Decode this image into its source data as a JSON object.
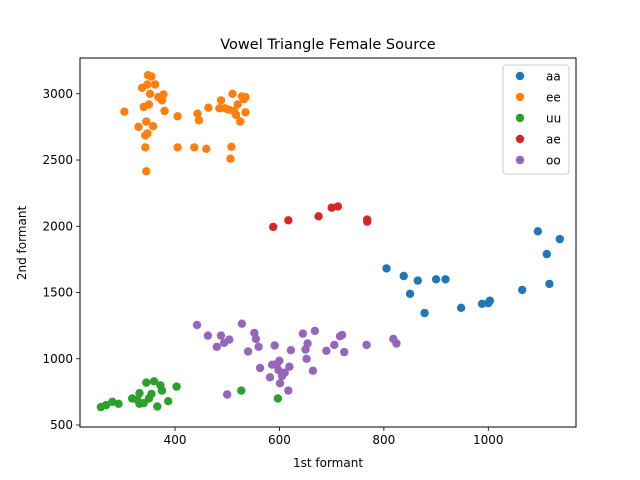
{
  "chart_data": {
    "type": "scatter",
    "title": "Vowel Triangle Female Source",
    "xlabel": "1st formant",
    "ylabel": "2nd formant",
    "xlim": [
      218,
      1168
    ],
    "ylim": [
      485,
      3270
    ],
    "xticks": [
      400,
      600,
      800,
      1000
    ],
    "yticks": [
      500,
      1000,
      1500,
      2000,
      2500,
      3000
    ],
    "grid": false,
    "legend_position": "top-right",
    "series": [
      {
        "name": "aa",
        "color": "#1f77b4",
        "points": [
          [
            805,
            1682
          ],
          [
            838,
            1625
          ],
          [
            850,
            1490
          ],
          [
            865,
            1590
          ],
          [
            878,
            1345
          ],
          [
            900,
            1600
          ],
          [
            918,
            1600
          ],
          [
            948,
            1385
          ],
          [
            988,
            1415
          ],
          [
            1000,
            1420
          ],
          [
            1003,
            1438
          ],
          [
            1065,
            1520
          ],
          [
            1095,
            1962
          ],
          [
            1112,
            1790
          ],
          [
            1117,
            1565
          ],
          [
            1137,
            1903
          ]
        ]
      },
      {
        "name": "ee",
        "color": "#ff7f0e",
        "points": [
          [
            303,
            2865
          ],
          [
            330,
            2750
          ],
          [
            337,
            3045
          ],
          [
            340,
            2900
          ],
          [
            343,
            2595
          ],
          [
            343,
            2685
          ],
          [
            345,
            2415
          ],
          [
            345,
            2790
          ],
          [
            347,
            3070
          ],
          [
            347,
            2700
          ],
          [
            348,
            3140
          ],
          [
            350,
            2920
          ],
          [
            352,
            3000
          ],
          [
            355,
            3130
          ],
          [
            358,
            2755
          ],
          [
            362,
            3070
          ],
          [
            368,
            2975
          ],
          [
            375,
            2950
          ],
          [
            378,
            2995
          ],
          [
            380,
            2870
          ],
          [
            405,
            2830
          ],
          [
            405,
            2595
          ],
          [
            437,
            2595
          ],
          [
            443,
            2850
          ],
          [
            446,
            2800
          ],
          [
            460,
            2585
          ],
          [
            464,
            2895
          ],
          [
            485,
            2890
          ],
          [
            488,
            2950
          ],
          [
            496,
            2890
          ],
          [
            503,
            2880
          ],
          [
            506,
            2510
          ],
          [
            508,
            2600
          ],
          [
            510,
            3000
          ],
          [
            513,
            2870
          ],
          [
            517,
            2840
          ],
          [
            520,
            2920
          ],
          [
            525,
            2790
          ],
          [
            528,
            2980
          ],
          [
            532,
            2960
          ],
          [
            535,
            2975
          ],
          [
            535,
            2860
          ]
        ]
      },
      {
        "name": "uu",
        "color": "#2ca02c",
        "points": [
          [
            258,
            635
          ],
          [
            268,
            650
          ],
          [
            280,
            675
          ],
          [
            292,
            660
          ],
          [
            318,
            700
          ],
          [
            328,
            690
          ],
          [
            332,
            740
          ],
          [
            332,
            660
          ],
          [
            340,
            665
          ],
          [
            345,
            820
          ],
          [
            350,
            700
          ],
          [
            355,
            735
          ],
          [
            360,
            830
          ],
          [
            366,
            640
          ],
          [
            372,
            800
          ],
          [
            375,
            760
          ],
          [
            387,
            680
          ],
          [
            403,
            790
          ],
          [
            527,
            760
          ],
          [
            597,
            700
          ]
        ]
      },
      {
        "name": "ae",
        "color": "#d62728",
        "points": [
          [
            588,
            1995
          ],
          [
            617,
            2045
          ],
          [
            675,
            2075
          ],
          [
            700,
            2140
          ],
          [
            712,
            2150
          ],
          [
            768,
            2050
          ],
          [
            768,
            2035
          ]
        ]
      },
      {
        "name": "oo",
        "color": "#9467bd",
        "points": [
          [
            442,
            1255
          ],
          [
            463,
            1175
          ],
          [
            480,
            1090
          ],
          [
            488,
            1175
          ],
          [
            494,
            1120
          ],
          [
            500,
            730
          ],
          [
            504,
            1145
          ],
          [
            528,
            1265
          ],
          [
            540,
            1055
          ],
          [
            552,
            1195
          ],
          [
            555,
            1150
          ],
          [
            560,
            1090
          ],
          [
            563,
            930
          ],
          [
            582,
            860
          ],
          [
            586,
            955
          ],
          [
            591,
            1100
          ],
          [
            595,
            960
          ],
          [
            598,
            915
          ],
          [
            600,
            985
          ],
          [
            601,
            815
          ],
          [
            605,
            870
          ],
          [
            610,
            895
          ],
          [
            617,
            760
          ],
          [
            619,
            940
          ],
          [
            622,
            1065
          ],
          [
            645,
            1190
          ],
          [
            650,
            1070
          ],
          [
            652,
            1000
          ],
          [
            654,
            1115
          ],
          [
            664,
            910
          ],
          [
            668,
            1210
          ],
          [
            690,
            1060
          ],
          [
            705,
            1105
          ],
          [
            716,
            1170
          ],
          [
            720,
            1180
          ],
          [
            724,
            1050
          ],
          [
            767,
            1105
          ],
          [
            818,
            1150
          ],
          [
            824,
            1115
          ]
        ]
      }
    ]
  }
}
